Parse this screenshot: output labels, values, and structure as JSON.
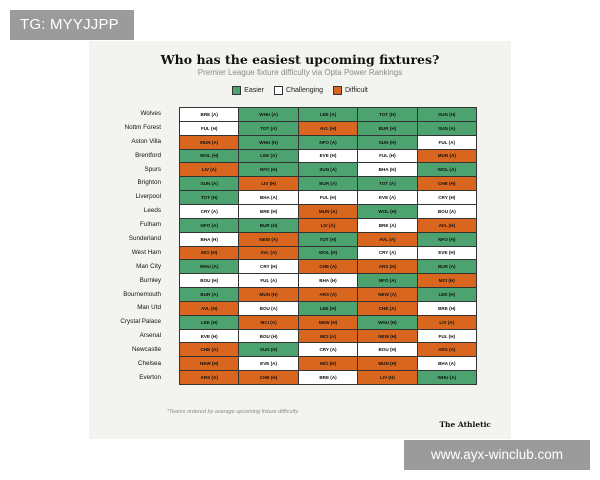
{
  "watermark_top": "TG: MYYJJPP",
  "watermark_bottom": "www.ayx-winclub.com",
  "colors": {
    "easier": "#4ca36f",
    "challenging": "#ffffff",
    "difficult": "#d9661f"
  },
  "legend": {
    "easier": "Easier",
    "challenging": "Challenging",
    "difficult": "Difficult"
  },
  "footnote": "*Teams ordered by average upcoming fixture difficulty",
  "brand": "The Athletic",
  "chart_data": {
    "type": "table",
    "title": "Who has the easiest upcoming fixtures?",
    "subtitle": "Premier League fixture difficulty via Opta Power Rankings",
    "teams": [
      "Wolves",
      "Nottm Forest",
      "Aston Villa",
      "Brentford",
      "Spurs",
      "Brighton",
      "Liverpool",
      "Leeds",
      "Fulham",
      "Sunderland",
      "West Ham",
      "Man City",
      "Burnley",
      "Bournemouth",
      "Man Utd",
      "Crystal Palace",
      "Arsenal",
      "Newcastle",
      "Chelsea",
      "Everton"
    ],
    "rows": [
      [
        [
          "BRE (A)",
          "c"
        ],
        [
          "WHU (A)",
          "e"
        ],
        [
          "LEE (A)",
          "e"
        ],
        [
          "TOT (H)",
          "e"
        ],
        [
          "SUN (H)",
          "e"
        ]
      ],
      [
        [
          "FUL (H)",
          "c"
        ],
        [
          "TOT (A)",
          "e"
        ],
        [
          "AVL (H)",
          "d"
        ],
        [
          "BUR (H)",
          "e"
        ],
        [
          "SUN (A)",
          "e"
        ]
      ],
      [
        [
          "MUN (A)",
          "d"
        ],
        [
          "WHU (H)",
          "e"
        ],
        [
          "NFO (A)",
          "e"
        ],
        [
          "SUN (H)",
          "e"
        ],
        [
          "FUL (A)",
          "c"
        ]
      ],
      [
        [
          "WOL (H)",
          "e"
        ],
        [
          "LEE (A)",
          "e"
        ],
        [
          "EVE (H)",
          "c"
        ],
        [
          "FUL (H)",
          "c"
        ],
        [
          "MUN (A)",
          "d"
        ]
      ],
      [
        [
          "LIV (A)",
          "d"
        ],
        [
          "NFO (H)",
          "e"
        ],
        [
          "SUN (A)",
          "e"
        ],
        [
          "BHA (H)",
          "c"
        ],
        [
          "WOL (A)",
          "e"
        ]
      ],
      [
        [
          "SUN (A)",
          "e"
        ],
        [
          "LIV (H)",
          "d"
        ],
        [
          "BUR (A)",
          "e"
        ],
        [
          "TOT (A)",
          "e"
        ],
        [
          "CHE (H)",
          "d"
        ]
      ],
      [
        [
          "TOT (H)",
          "e"
        ],
        [
          "BHA (A)",
          "c"
        ],
        [
          "FUL (H)",
          "c"
        ],
        [
          "EVE (A)",
          "c"
        ],
        [
          "CRY (H)",
          "c"
        ]
      ],
      [
        [
          "CRY (A)",
          "c"
        ],
        [
          "BRE (H)",
          "c"
        ],
        [
          "MUN (A)",
          "d"
        ],
        [
          "WOL (H)",
          "e"
        ],
        [
          "BOU (A)",
          "c"
        ]
      ],
      [
        [
          "NFO (A)",
          "e"
        ],
        [
          "BUR (H)",
          "e"
        ],
        [
          "LIV (A)",
          "d"
        ],
        [
          "BRE (A)",
          "c"
        ],
        [
          "AVL (H)",
          "d"
        ]
      ],
      [
        [
          "BHA (H)",
          "c"
        ],
        [
          "NEW (A)",
          "d"
        ],
        [
          "TOT (H)",
          "e"
        ],
        [
          "AVL (A)",
          "d"
        ],
        [
          "NFO (H)",
          "e"
        ]
      ],
      [
        [
          "MCI (H)",
          "d"
        ],
        [
          "AVL (A)",
          "d"
        ],
        [
          "WOL (H)",
          "e"
        ],
        [
          "CRY (A)",
          "c"
        ],
        [
          "EVE (H)",
          "c"
        ]
      ],
      [
        [
          "WHU (A)",
          "e"
        ],
        [
          "CRY (H)",
          "c"
        ],
        [
          "CHE (A)",
          "d"
        ],
        [
          "ARS (H)",
          "d"
        ],
        [
          "BUR (A)",
          "e"
        ]
      ],
      [
        [
          "BOU (H)",
          "c"
        ],
        [
          "FUL (A)",
          "c"
        ],
        [
          "BHA (H)",
          "c"
        ],
        [
          "NFO (A)",
          "e"
        ],
        [
          "MCI (H)",
          "d"
        ]
      ],
      [
        [
          "BUR (A)",
          "e"
        ],
        [
          "MUN (H)",
          "d"
        ],
        [
          "ARS (A)",
          "d"
        ],
        [
          "NEW (A)",
          "d"
        ],
        [
          "LEE (H)",
          "e"
        ]
      ],
      [
        [
          "AVL (H)",
          "d"
        ],
        [
          "BOU (A)",
          "c"
        ],
        [
          "LEE (H)",
          "e"
        ],
        [
          "CHE (A)",
          "d"
        ],
        [
          "BRE (H)",
          "c"
        ]
      ],
      [
        [
          "LEE (H)",
          "e"
        ],
        [
          "MCI (A)",
          "d"
        ],
        [
          "NEW (H)",
          "d"
        ],
        [
          "WHU (H)",
          "e"
        ],
        [
          "LIV (A)",
          "d"
        ]
      ],
      [
        [
          "EVE (H)",
          "c"
        ],
        [
          "BOU (H)",
          "c"
        ],
        [
          "MCI (A)",
          "d"
        ],
        [
          "NEW (H)",
          "d"
        ],
        [
          "FUL (H)",
          "c"
        ]
      ],
      [
        [
          "CHE (A)",
          "d"
        ],
        [
          "SUN (H)",
          "e"
        ],
        [
          "CRY (A)",
          "c"
        ],
        [
          "BOU (H)",
          "c"
        ],
        [
          "ARS (A)",
          "d"
        ]
      ],
      [
        [
          "NEW (H)",
          "d"
        ],
        [
          "EVE (A)",
          "c"
        ],
        [
          "MCI (H)",
          "d"
        ],
        [
          "MUN (H)",
          "d"
        ],
        [
          "BHA (A)",
          "c"
        ]
      ],
      [
        [
          "ARS (A)",
          "d"
        ],
        [
          "CHE (H)",
          "d"
        ],
        [
          "BRE (A)",
          "c"
        ],
        [
          "LIV (H)",
          "d"
        ],
        [
          "WHU (A)",
          "e"
        ]
      ]
    ]
  }
}
